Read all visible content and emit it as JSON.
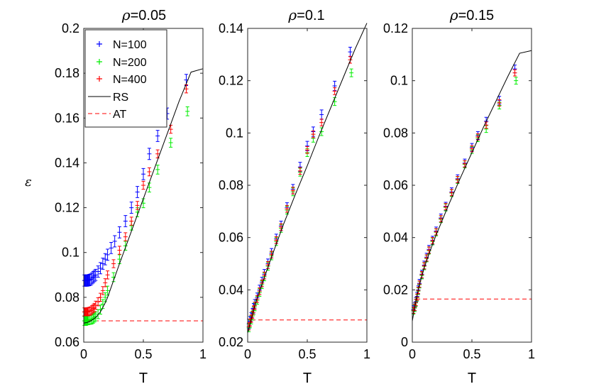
{
  "chart_data": {
    "type": "scatter",
    "ylabel": "ε",
    "legend": {
      "placement": "top-left of first panel",
      "entries": [
        {
          "label": "N=100",
          "color": "#0000ff",
          "marker": "+"
        },
        {
          "label": "N=200",
          "color": "#00ee00",
          "marker": "+"
        },
        {
          "label": "N=400",
          "color": "#ff0000",
          "marker": "+"
        },
        {
          "label": "RS",
          "color": "#000000",
          "style": "solid"
        },
        {
          "label": "AT",
          "color": "#ff0000",
          "style": "dashed"
        }
      ]
    },
    "panels": [
      {
        "title_symbol": "ρ",
        "title_value": "=0.05",
        "xlabel": "T",
        "xlim": [
          0,
          1
        ],
        "ylim": [
          0.06,
          0.2
        ],
        "xticks": [
          "0",
          "0.5",
          "1"
        ],
        "yticks": [
          "0.06",
          "0.08",
          "0.1",
          "0.12",
          "0.14",
          "0.16",
          "0.18",
          "0.2"
        ],
        "series": [
          {
            "name": "N=100",
            "color": "#0000ff",
            "err": 0.0025,
            "x": [
              0.005,
              0.01,
              0.015,
              0.02,
              0.025,
              0.03,
              0.035,
              0.04,
              0.045,
              0.05,
              0.06,
              0.07,
              0.08,
              0.09,
              0.1,
              0.12,
              0.14,
              0.16,
              0.18,
              0.2,
              0.23,
              0.26,
              0.3,
              0.35,
              0.4,
              0.45,
              0.5,
              0.55,
              0.62,
              0.7,
              0.86
            ],
            "y": [
              0.0875,
              0.0875,
              0.0875,
              0.0875,
              0.0875,
              0.0875,
              0.0876,
              0.0876,
              0.0877,
              0.0878,
              0.088,
              0.0885,
              0.089,
              0.0895,
              0.09,
              0.0915,
              0.093,
              0.095,
              0.097,
              0.099,
              0.102,
              0.105,
              0.109,
              0.114,
              0.12,
              0.127,
              0.135,
              0.144,
              0.152,
              0.162,
              0.177
            ]
          },
          {
            "name": "N=200",
            "color": "#00ee00",
            "err": 0.002,
            "x": [
              0.005,
              0.01,
              0.015,
              0.02,
              0.025,
              0.03,
              0.035,
              0.04,
              0.05,
              0.06,
              0.07,
              0.08,
              0.09,
              0.1,
              0.12,
              0.14,
              0.16,
              0.18,
              0.2,
              0.25,
              0.3,
              0.35,
              0.4,
              0.45,
              0.5,
              0.55,
              0.62,
              0.73,
              0.87
            ],
            "y": [
              0.0695,
              0.0695,
              0.0695,
              0.0695,
              0.0697,
              0.0698,
              0.0698,
              0.0698,
              0.07,
              0.07,
              0.0702,
              0.0705,
              0.071,
              0.0715,
              0.0725,
              0.0745,
              0.077,
              0.08,
              0.083,
              0.089,
              0.097,
              0.103,
              0.112,
              0.118,
              0.122,
              0.129,
              0.137,
              0.149,
              0.163
            ]
          },
          {
            "name": "N=400",
            "color": "#ff0000",
            "err": 0.0018,
            "x": [
              0.005,
              0.01,
              0.015,
              0.02,
              0.025,
              0.03,
              0.035,
              0.04,
              0.05,
              0.06,
              0.07,
              0.08,
              0.09,
              0.1,
              0.12,
              0.14,
              0.16,
              0.18,
              0.2,
              0.25,
              0.3,
              0.35,
              0.4,
              0.45,
              0.5,
              0.55,
              0.62,
              0.73,
              0.86
            ],
            "y": [
              0.0735,
              0.0735,
              0.0735,
              0.0735,
              0.0735,
              0.0735,
              0.0736,
              0.0737,
              0.0738,
              0.074,
              0.0745,
              0.075,
              0.0755,
              0.0765,
              0.078,
              0.08,
              0.083,
              0.0865,
              0.09,
              0.095,
              0.101,
              0.107,
              0.114,
              0.121,
              0.13,
              0.136,
              0.144,
              0.155,
              0.173
            ]
          }
        ],
        "rs_line": {
          "x": [
            0.0,
            0.03,
            0.06,
            0.1,
            0.14,
            0.18,
            0.2,
            0.25,
            0.3,
            0.4,
            0.5,
            0.6,
            0.7,
            0.8,
            0.9,
            1.0
          ],
          "y": [
            0.0685,
            0.0688,
            0.0695,
            0.071,
            0.0735,
            0.0775,
            0.08,
            0.0875,
            0.095,
            0.1095,
            0.124,
            0.1385,
            0.153,
            0.1675,
            0.1805,
            0.182
          ]
        },
        "at_line": {
          "y": 0.0695,
          "x_start": 0.03,
          "x_end": 1.0
        }
      },
      {
        "title_symbol": "ρ",
        "title_value": "=0.1",
        "xlabel": "T",
        "xlim": [
          0,
          1
        ],
        "ylim": [
          0.02,
          0.14
        ],
        "xticks": [
          "0",
          "0.5",
          "1"
        ],
        "yticks": [
          "0.02",
          "0.04",
          "0.06",
          "0.08",
          "0.1",
          "0.12",
          "0.14"
        ],
        "series": [
          {
            "name": "N=100",
            "color": "#0000ff",
            "err": 0.0018,
            "x": [
              0.01,
              0.02,
              0.03,
              0.04,
              0.05,
              0.06,
              0.08,
              0.1,
              0.12,
              0.14,
              0.17,
              0.2,
              0.24,
              0.28,
              0.33,
              0.38,
              0.44,
              0.5,
              0.55,
              0.62,
              0.73,
              0.86
            ],
            "y": [
              0.027,
              0.028,
              0.0295,
              0.031,
              0.033,
              0.0345,
              0.037,
              0.04,
              0.043,
              0.046,
              0.05,
              0.054,
              0.0595,
              0.0645,
              0.0715,
              0.0785,
              0.087,
              0.095,
              0.1005,
              0.107,
              0.118,
              0.131
            ]
          },
          {
            "name": "N=200",
            "color": "#00ee00",
            "err": 0.0015,
            "x": [
              0.01,
              0.02,
              0.03,
              0.04,
              0.05,
              0.06,
              0.08,
              0.1,
              0.12,
              0.14,
              0.17,
              0.2,
              0.24,
              0.28,
              0.33,
              0.38,
              0.44,
              0.5,
              0.55,
              0.62,
              0.73,
              0.87
            ],
            "y": [
              0.0255,
              0.027,
              0.0285,
              0.03,
              0.032,
              0.0335,
              0.036,
              0.039,
              0.042,
              0.045,
              0.049,
              0.053,
              0.0585,
              0.0635,
              0.0705,
              0.0775,
              0.085,
              0.0925,
              0.098,
              0.1005,
              0.112,
              0.123
            ]
          },
          {
            "name": "N=400",
            "color": "#ff0000",
            "err": 0.0013,
            "x": [
              0.01,
              0.02,
              0.03,
              0.04,
              0.05,
              0.06,
              0.08,
              0.1,
              0.12,
              0.14,
              0.17,
              0.2,
              0.24,
              0.28,
              0.33,
              0.38,
              0.44,
              0.5,
              0.55,
              0.62,
              0.73,
              0.86
            ],
            "y": [
              0.026,
              0.0275,
              0.029,
              0.0305,
              0.0325,
              0.034,
              0.0365,
              0.0395,
              0.0425,
              0.0455,
              0.0495,
              0.0535,
              0.059,
              0.064,
              0.071,
              0.078,
              0.0855,
              0.0935,
              0.0995,
              0.104,
              0.116,
              0.128
            ]
          }
        ],
        "rs_line": {
          "x": [
            0.0,
            0.02,
            0.04,
            0.06,
            0.1,
            0.15,
            0.2,
            0.3,
            0.4,
            0.5,
            0.6,
            0.7,
            0.8,
            0.9,
            1.0
          ],
          "y": [
            0.0235,
            0.027,
            0.0305,
            0.034,
            0.0395,
            0.046,
            0.0525,
            0.065,
            0.0765,
            0.0875,
            0.099,
            0.11,
            0.121,
            0.132,
            0.142
          ]
        },
        "at_line": {
          "y": 0.0285,
          "x_start": 0.03,
          "x_end": 1.0
        }
      },
      {
        "title_symbol": "ρ",
        "title_value": "=0.15",
        "xlabel": "T",
        "xlim": [
          0,
          1
        ],
        "ylim": [
          0,
          0.12
        ],
        "xticks": [
          "0",
          "0.5",
          "1"
        ],
        "yticks": [
          "0",
          "0.02",
          "0.04",
          "0.06",
          "0.08",
          "0.1",
          "0.12"
        ],
        "series": [
          {
            "name": "N=100",
            "color": "#0000ff",
            "err": 0.0015,
            "x": [
              0.01,
              0.02,
              0.03,
              0.04,
              0.05,
              0.06,
              0.08,
              0.1,
              0.12,
              0.14,
              0.17,
              0.2,
              0.24,
              0.28,
              0.33,
              0.38,
              0.44,
              0.5,
              0.55,
              0.62,
              0.73,
              0.86
            ],
            "y": [
              0.0125,
              0.0135,
              0.0155,
              0.0175,
              0.02,
              0.0225,
              0.026,
              0.0295,
              0.0325,
              0.0355,
              0.039,
              0.0425,
              0.0475,
              0.052,
              0.0575,
              0.0625,
              0.0685,
              0.0745,
              0.079,
              0.0845,
              0.0925,
              0.1045
            ]
          },
          {
            "name": "N=200",
            "color": "#00ee00",
            "err": 0.0013,
            "x": [
              0.01,
              0.02,
              0.03,
              0.04,
              0.05,
              0.06,
              0.08,
              0.1,
              0.12,
              0.14,
              0.17,
              0.2,
              0.24,
              0.28,
              0.33,
              0.38,
              0.44,
              0.5,
              0.55,
              0.62,
              0.73,
              0.87
            ],
            "y": [
              0.012,
              0.013,
              0.015,
              0.017,
              0.0195,
              0.022,
              0.0255,
              0.029,
              0.032,
              0.035,
              0.0385,
              0.042,
              0.047,
              0.0515,
              0.057,
              0.062,
              0.068,
              0.0735,
              0.078,
              0.0815,
              0.0905,
              0.1
            ]
          },
          {
            "name": "N=400",
            "color": "#ff0000",
            "err": 0.0012,
            "x": [
              0.01,
              0.02,
              0.03,
              0.04,
              0.05,
              0.06,
              0.08,
              0.1,
              0.12,
              0.14,
              0.17,
              0.2,
              0.24,
              0.28,
              0.33,
              0.38,
              0.44,
              0.5,
              0.55,
              0.62,
              0.73,
              0.86
            ],
            "y": [
              0.0122,
              0.0133,
              0.0152,
              0.0172,
              0.0198,
              0.0222,
              0.0258,
              0.0292,
              0.0322,
              0.0352,
              0.0388,
              0.0422,
              0.0472,
              0.0518,
              0.0572,
              0.0622,
              0.0682,
              0.074,
              0.0785,
              0.083,
              0.0915,
              0.103
            ]
          }
        ],
        "rs_line": {
          "x": [
            0.0,
            0.02,
            0.04,
            0.06,
            0.1,
            0.15,
            0.2,
            0.3,
            0.4,
            0.5,
            0.6,
            0.7,
            0.8,
            0.9,
            1.0
          ],
          "y": [
            0.008,
            0.0135,
            0.018,
            0.022,
            0.0285,
            0.035,
            0.041,
            0.052,
            0.0625,
            0.0725,
            0.0825,
            0.092,
            0.1015,
            0.1105,
            0.1115
          ]
        },
        "at_line": {
          "y": 0.0165,
          "x_start": 0.03,
          "x_end": 1.0
        }
      }
    ]
  }
}
